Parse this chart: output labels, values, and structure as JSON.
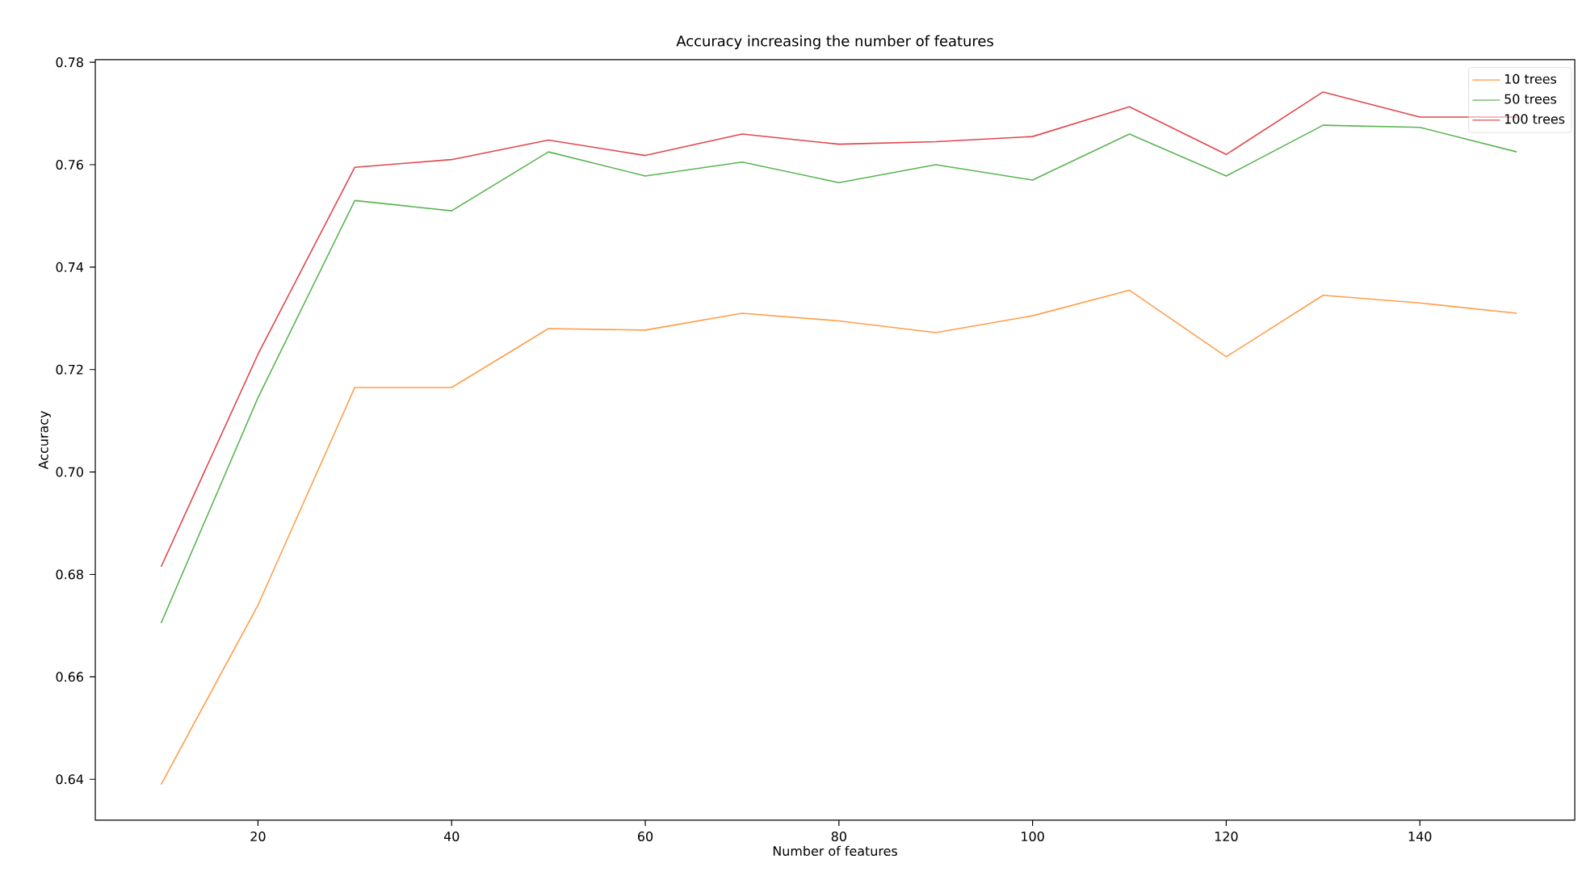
{
  "chart_data": {
    "type": "line",
    "title": "Accuracy increasing the number of features",
    "xlabel": "Number of features",
    "ylabel": "Accuracy",
    "x": [
      10,
      20,
      30,
      40,
      50,
      60,
      70,
      80,
      90,
      100,
      110,
      120,
      130,
      140,
      150
    ],
    "series": [
      {
        "name": "10 trees",
        "color": "#ff9e4a",
        "values": [
          0.639,
          0.674,
          0.7165,
          0.7165,
          0.728,
          0.7277,
          0.731,
          0.7295,
          0.7272,
          0.7305,
          0.7355,
          0.7225,
          0.7345,
          0.733,
          0.731
        ]
      },
      {
        "name": "50 trees",
        "color": "#5ab552",
        "values": [
          0.6705,
          0.7145,
          0.753,
          0.751,
          0.7625,
          0.7578,
          0.7605,
          0.7565,
          0.76,
          0.757,
          0.766,
          0.7578,
          0.7677,
          0.7673,
          0.7625
        ]
      },
      {
        "name": "100 trees",
        "color": "#e0474c",
        "values": [
          0.6815,
          0.723,
          0.7595,
          0.761,
          0.7648,
          0.7618,
          0.766,
          0.764,
          0.7645,
          0.7655,
          0.7713,
          0.762,
          0.7742,
          0.7693,
          0.7693
        ]
      }
    ],
    "xlim": [
      3.2,
      156
    ],
    "ylim": [
      0.632,
      0.7805
    ],
    "xticks": [
      20,
      40,
      60,
      80,
      100,
      120,
      140
    ],
    "yticks": [
      {
        "value": 0.64,
        "label": "0.64"
      },
      {
        "value": 0.66,
        "label": "0.66"
      },
      {
        "value": 0.68,
        "label": "0.68"
      },
      {
        "value": 0.7,
        "label": "0.70"
      },
      {
        "value": 0.72,
        "label": "0.72"
      },
      {
        "value": 0.74,
        "label": "0.74"
      },
      {
        "value": 0.76,
        "label": "0.76"
      },
      {
        "value": 0.78,
        "label": "0.78"
      }
    ],
    "grid": false,
    "legend": "top right",
    "marker": "none",
    "line_style": "solid"
  }
}
